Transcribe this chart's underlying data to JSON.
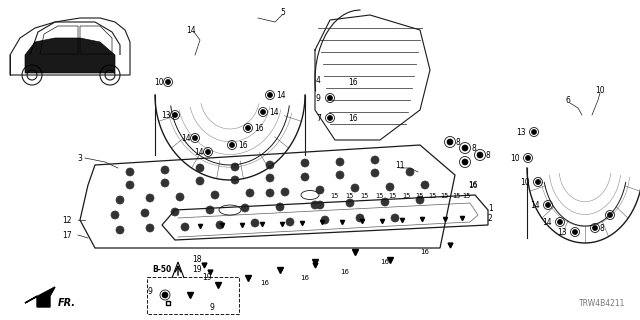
{
  "diagram_id": "TRW4B4211",
  "bg_color": "#ffffff",
  "line_color": "#1a1a1a",
  "gray_color": "#555555",
  "light_gray": "#aaaaaa"
}
